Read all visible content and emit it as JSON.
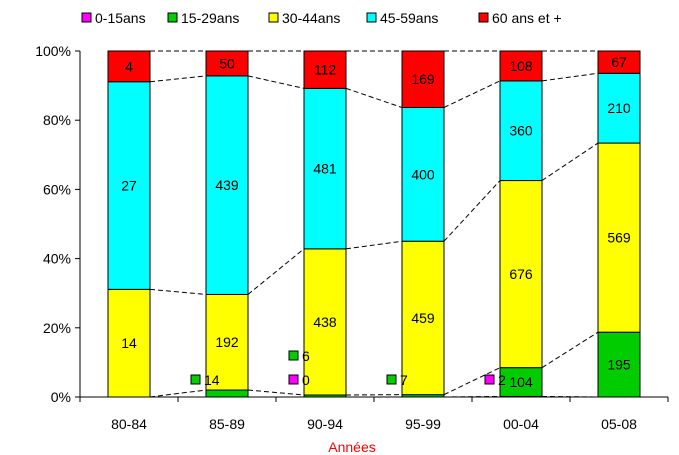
{
  "chart_data": {
    "type": "bar",
    "stacked": "percent",
    "categories": [
      "80-84",
      "85-89",
      "90-94",
      "95-99",
      "00-04",
      "05-08"
    ],
    "series": [
      {
        "name": "0-15ans",
        "color": "#ff00ff",
        "values": [
          0,
          0,
          0,
          0,
          2,
          0
        ],
        "labels": [
          "",
          "",
          "0",
          "",
          "2",
          ""
        ]
      },
      {
        "name": "15-29ans",
        "color": "#00cc00",
        "values": [
          0,
          14,
          6,
          7,
          104,
          195
        ],
        "labels": [
          "",
          "14",
          "6",
          "7",
          "104",
          "195"
        ]
      },
      {
        "name": "30-44ans",
        "color": "#ffff00",
        "values": [
          14,
          192,
          438,
          459,
          676,
          569
        ],
        "labels": [
          "14",
          "192",
          "438",
          "459",
          "676",
          "569"
        ]
      },
      {
        "name": "45-59ans",
        "color": "#00ffff",
        "values": [
          27,
          439,
          481,
          400,
          360,
          210
        ],
        "labels": [
          "27",
          "439",
          "481",
          "400",
          "360",
          "210"
        ]
      },
      {
        "name": "60 ans et +",
        "color": "#ff0000",
        "values": [
          4,
          50,
          112,
          169,
          108,
          67
        ],
        "labels": [
          "4",
          "50",
          "112",
          "169",
          "108",
          "67"
        ]
      }
    ],
    "xlabel": "Années",
    "ylabel": "",
    "ylim": [
      0,
      100
    ],
    "yticks": [
      "0%",
      "20%",
      "40%",
      "60%",
      "80%",
      "100%"
    ],
    "legend_position": "top",
    "grid": false,
    "connector_lines": true
  }
}
